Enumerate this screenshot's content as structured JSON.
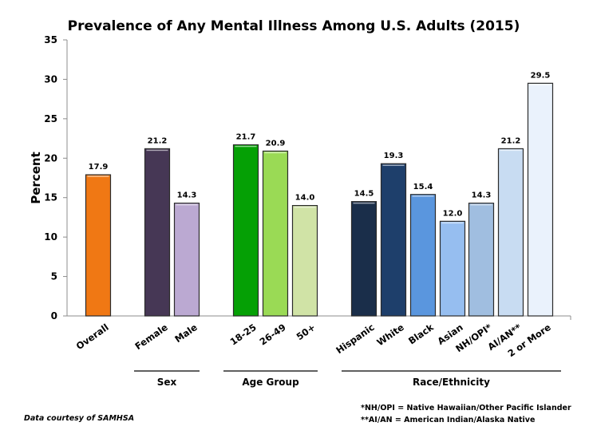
{
  "chart_data": {
    "type": "bar",
    "title": "Prevalence of Any Mental Illness Among U.S. Adults (2015)",
    "xlabel": "",
    "ylabel": "Percent",
    "ylim": [
      0,
      35
    ],
    "yticks": [
      0,
      5,
      10,
      15,
      20,
      25,
      30,
      35
    ],
    "grid": false,
    "categories": [
      "Overall",
      "Female",
      "Male",
      "18-25",
      "26-49",
      "50+",
      "Hispanic",
      "White",
      "Black",
      "Asian",
      "NH/OPI*",
      "AI/AN**",
      "2 or More"
    ],
    "values": [
      17.9,
      21.2,
      14.3,
      21.7,
      20.9,
      14.0,
      14.5,
      19.3,
      15.4,
      12.0,
      14.3,
      21.2,
      29.5
    ],
    "value_labels": [
      "17.9",
      "21.2",
      "14.3",
      "21.7",
      "20.9",
      "14.0",
      "14.5",
      "19.3",
      "15.4",
      "12.0",
      "14.3",
      "21.2",
      "29.5"
    ],
    "colors": [
      "#F07814",
      "#463755",
      "#BBA9D2",
      "#05A005",
      "#9ADA55",
      "#D0E3A6",
      "#1A2E4A",
      "#1E3F6B",
      "#5A96DE",
      "#96BEF0",
      "#A0BEE0",
      "#C8DCF2",
      "#EAF2FC"
    ],
    "groups": [
      {
        "label": "Sex",
        "members": [
          "Female",
          "Male"
        ]
      },
      {
        "label": "Age Group",
        "members": [
          "18-25",
          "26-49",
          "50+"
        ]
      },
      {
        "label": "Race/Ethnicity",
        "members": [
          "Hispanic",
          "White",
          "Black",
          "Asian",
          "NH/OPI*",
          "AI/AN**",
          "2 or More"
        ]
      }
    ],
    "footnotes": [
      "*NH/OPI = Native Hawaiian/Other Pacific Islander",
      "**AI/AN = American Indian/Alaska Native"
    ],
    "credit": "Data courtesy of SAMHSA"
  }
}
